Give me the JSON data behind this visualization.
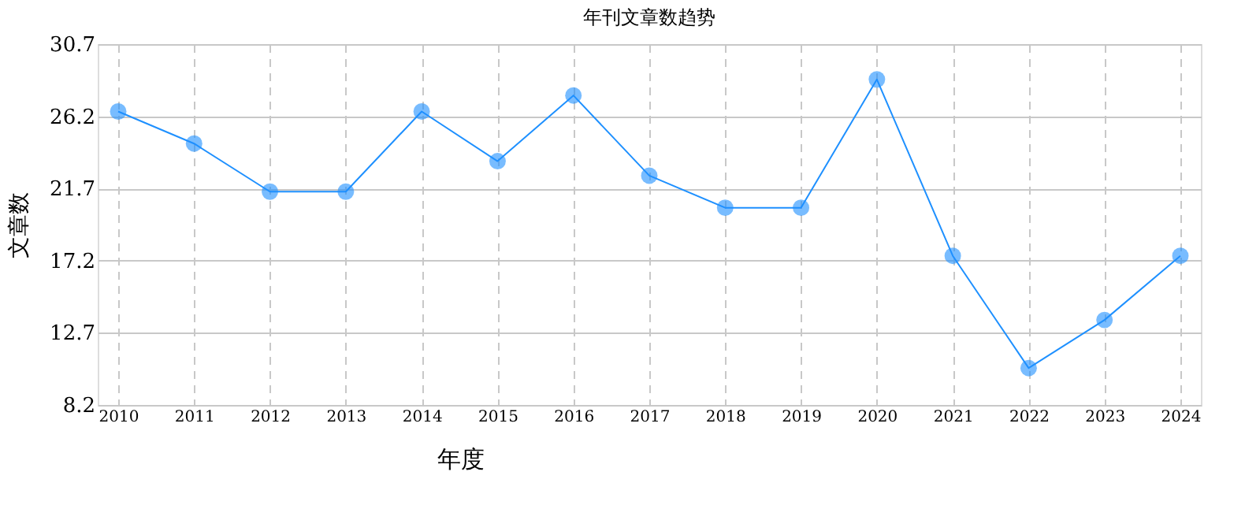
{
  "chart_data": {
    "type": "line",
    "title": "年刊文章数趋势",
    "xlabel": "年度",
    "ylabel": "文章数",
    "categories": [
      "2010",
      "2011",
      "2012",
      "2013",
      "2014",
      "2015",
      "2016",
      "2017",
      "2018",
      "2019",
      "2020",
      "2021",
      "2022",
      "2023",
      "2024"
    ],
    "series": [
      {
        "color": "#1e90ff",
        "values": [
          26.5,
          24.5,
          21.5,
          21.5,
          26.5,
          23.4,
          27.5,
          22.5,
          20.5,
          20.5,
          28.5,
          17.5,
          10.5,
          13.5,
          17.5
        ]
      }
    ],
    "ylim": [
      8.2,
      30.7
    ],
    "yticks": [
      8.2,
      12.7,
      17.2,
      21.7,
      26.2,
      30.7
    ],
    "grid": true,
    "marker": "circle",
    "line_style": "solid"
  }
}
